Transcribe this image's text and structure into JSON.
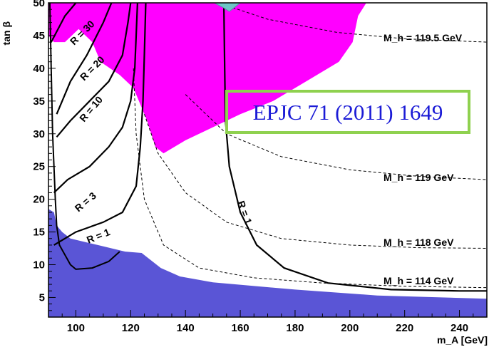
{
  "chart_data": {
    "type": "contour",
    "xlabel": "m_A [GeV]",
    "ylabel": "tan β",
    "xlim": [
      90,
      250
    ],
    "ylim": [
      2,
      50
    ],
    "xticks": [
      100,
      120,
      140,
      160,
      180,
      200,
      220,
      240
    ],
    "yticks": [
      5,
      10,
      15,
      20,
      25,
      30,
      35,
      40,
      45,
      50
    ],
    "colors": {
      "excluded_top": "#ff00ff",
      "excluded_bottom": "#5a55d6",
      "frame": "#000000",
      "citation_box": "#8fd14f",
      "citation_text": "#1b1bd6",
      "arrow": "#6ec6c6"
    },
    "citation": "EPJC 71 (2011) 1649",
    "r_contours": [
      {
        "label": "R = 30",
        "points": [
          [
            91,
            44
          ],
          [
            96,
            48
          ],
          [
            100,
            50
          ]
        ]
      },
      {
        "label": "R = 20",
        "points": [
          [
            93,
            33
          ],
          [
            98,
            38
          ],
          [
            104,
            42
          ],
          [
            110,
            47
          ],
          [
            113,
            50
          ]
        ]
      },
      {
        "label": "R = 10",
        "points": [
          [
            93,
            29.5
          ],
          [
            98,
            32
          ],
          [
            105,
            35
          ],
          [
            112,
            38
          ],
          [
            117,
            42
          ],
          [
            119,
            47
          ],
          [
            120,
            50
          ]
        ]
      },
      {
        "label": "R = 3",
        "points": [
          [
            92,
            21
          ],
          [
            97,
            23
          ],
          [
            105,
            25
          ],
          [
            112,
            28
          ],
          [
            117,
            31
          ],
          [
            120,
            35
          ],
          [
            121.5,
            40
          ],
          [
            122,
            45
          ],
          [
            122.5,
            50
          ]
        ]
      },
      {
        "label": "R = 1",
        "points": [
          [
            92,
            13
          ],
          [
            100,
            15
          ],
          [
            110,
            16.5
          ],
          [
            117,
            18
          ],
          [
            122,
            22
          ],
          [
            123.5,
            28
          ],
          [
            124.5,
            35
          ],
          [
            125,
            42
          ],
          [
            125.5,
            50
          ]
        ]
      },
      {
        "label": "R = 1",
        "points": [
          [
            154,
            50
          ],
          [
            154.3,
            40
          ],
          [
            154.6,
            32
          ],
          [
            156,
            25
          ],
          [
            160,
            18
          ],
          [
            166,
            13
          ],
          [
            176,
            9.5
          ],
          [
            192,
            7.2
          ],
          [
            215,
            6.2
          ],
          [
            240,
            6
          ],
          [
            250,
            6
          ]
        ]
      }
    ],
    "mh_contours": [
      {
        "label": "M_h = 119.5 GeV",
        "points": [
          [
            152,
            50
          ],
          [
            170,
            47.5
          ],
          [
            195,
            45.5
          ],
          [
            220,
            44.5
          ],
          [
            250,
            44
          ]
        ]
      },
      {
        "label": "M_h = 119 GeV",
        "points": [
          [
            140,
            36
          ],
          [
            155,
            30
          ],
          [
            175,
            26.5
          ],
          [
            200,
            24.5
          ],
          [
            225,
            23.5
          ],
          [
            250,
            23
          ]
        ]
      },
      {
        "label": "M_h = 118 GeV",
        "points": [
          [
            125,
            33
          ],
          [
            130,
            27
          ],
          [
            140,
            21
          ],
          [
            155,
            16.5
          ],
          [
            175,
            14
          ],
          [
            200,
            13
          ],
          [
            225,
            12.6
          ],
          [
            250,
            12.5
          ]
        ]
      },
      {
        "label": "M_h = 114 GeV",
        "points": [
          [
            121,
            40
          ],
          [
            122,
            30
          ],
          [
            125,
            20
          ],
          [
            132,
            13
          ],
          [
            145,
            9.5
          ],
          [
            165,
            8
          ],
          [
            190,
            7.2
          ],
          [
            220,
            6.7
          ],
          [
            250,
            6.5
          ]
        ]
      }
    ],
    "excluded_top": [
      [
        90,
        50
      ],
      [
        206,
        50
      ],
      [
        203,
        48
      ],
      [
        201,
        44
      ],
      [
        196,
        41
      ],
      [
        186,
        38.5
      ],
      [
        172,
        35
      ],
      [
        160,
        33
      ],
      [
        150,
        31
      ],
      [
        140,
        29
      ],
      [
        132,
        27
      ],
      [
        129,
        28
      ],
      [
        126,
        32
      ],
      [
        121,
        37
      ],
      [
        116,
        39
      ],
      [
        109,
        41
      ],
      [
        106,
        44
      ],
      [
        101,
        46
      ],
      [
        96,
        44
      ],
      [
        92,
        44
      ],
      [
        90,
        45
      ]
    ],
    "excluded_bottom": [
      [
        90,
        2
      ],
      [
        250,
        2
      ],
      [
        250,
        4.8
      ],
      [
        210,
        5.3
      ],
      [
        180,
        6.2
      ],
      [
        150,
        7.3
      ],
      [
        138,
        8.2
      ],
      [
        131,
        9.5
      ],
      [
        124,
        11.8
      ],
      [
        118,
        12
      ],
      [
        108,
        13
      ],
      [
        98,
        14
      ],
      [
        95,
        15
      ],
      [
        93,
        16
      ],
      [
        92,
        18
      ],
      [
        90,
        18.5
      ]
    ],
    "axis_labels": {
      "x": "m_A [GeV]",
      "y": "tan β"
    },
    "mh_label_text": [
      "M_h = 119.5 GeV",
      "M_h = 119 GeV",
      "M_h = 118 GeV",
      "M_h = 114 GeV"
    ],
    "r_label_text": [
      "R = 30",
      "R = 20",
      "R = 10",
      "R = 3",
      "R = 1",
      "R = 1"
    ]
  }
}
